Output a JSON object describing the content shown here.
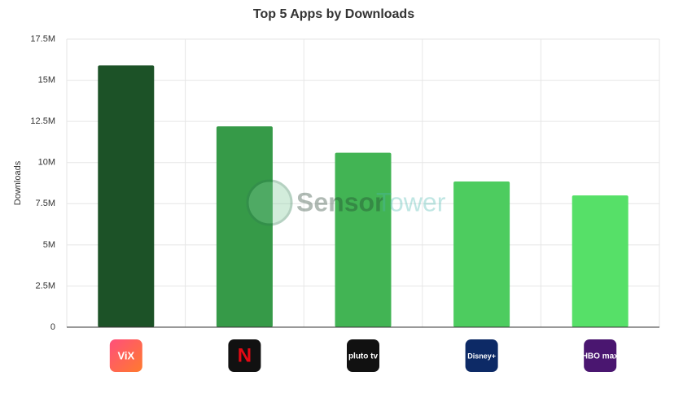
{
  "chart_data": {
    "type": "bar",
    "title": "Top 5 Apps by Downloads",
    "y_label": "Downloads",
    "watermark": [
      "Sensor",
      "Tower"
    ],
    "categories": [
      "ViX",
      "N",
      "pluto tv",
      "Disney+",
      "HBO max"
    ],
    "values": [
      15900000,
      12200000,
      10600000,
      8850000,
      8000000
    ],
    "colors": [
      "#1c5227",
      "#369a48",
      "#42b454",
      "#4dcc5f",
      "#56e068"
    ],
    "ylim": [
      0,
      17500000
    ],
    "yticks": [
      0,
      {
        "value": 2500000,
        "label": "2.5M"
      },
      {
        "value": 5000000,
        "label": "5M"
      },
      {
        "value": 7500000,
        "label": "7.5M"
      },
      {
        "value": 10000000,
        "label": "10M"
      },
      {
        "value": 12500000,
        "label": "12.5M"
      },
      {
        "value": 15000000,
        "label": "15M"
      },
      {
        "value": 17500000,
        "label": "17.5M"
      }
    ],
    "grid": true
  }
}
